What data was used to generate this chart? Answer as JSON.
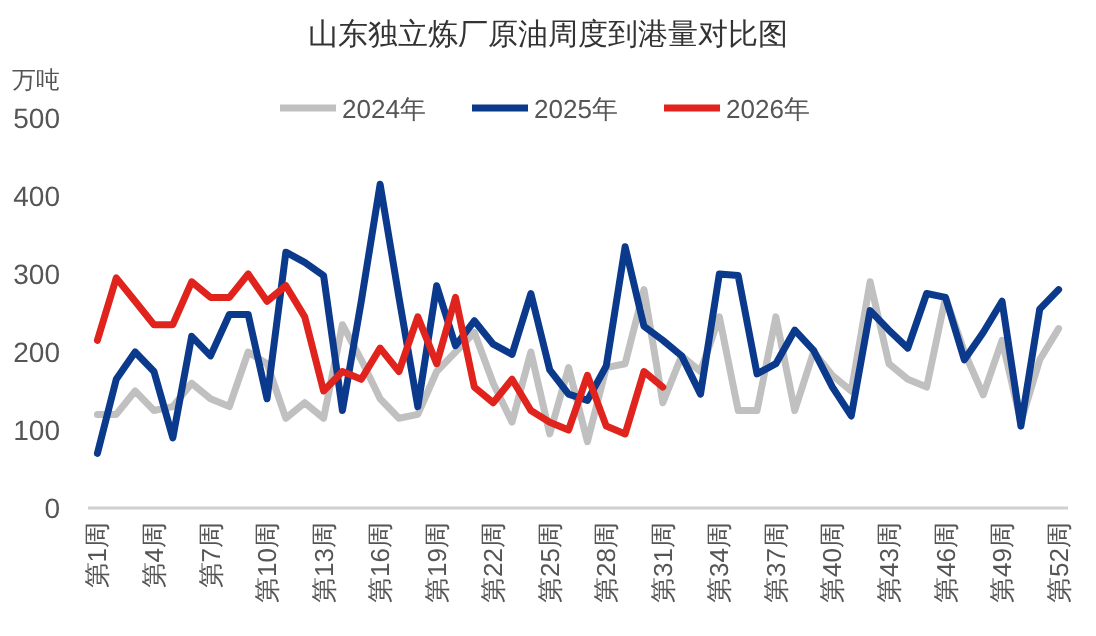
{
  "chart_data": {
    "type": "line",
    "title": "山东独立炼厂原油周度到港量对比图",
    "ylabel": "万吨",
    "categories": [
      "第1周",
      null,
      null,
      "第4周",
      null,
      null,
      "第7周",
      null,
      null,
      "第10周",
      null,
      null,
      "第13周",
      null,
      null,
      "第16周",
      null,
      null,
      "第19周",
      null,
      null,
      "第22周",
      null,
      null,
      "第25周",
      null,
      null,
      "第28周",
      null,
      null,
      "第31周",
      null,
      null,
      "第34周",
      null,
      null,
      "第37周",
      null,
      null,
      "第40周",
      null,
      null,
      "第43周",
      null,
      null,
      "第46周",
      null,
      null,
      "第49周",
      null,
      null,
      "第52周"
    ],
    "series": [
      {
        "name": "2024年",
        "color": "#c0c0c0",
        "values": [
          120,
          120,
          150,
          125,
          130,
          160,
          140,
          130,
          200,
          185,
          115,
          135,
          115,
          235,
          190,
          140,
          115,
          120,
          175,
          200,
          225,
          160,
          110,
          200,
          95,
          180,
          85,
          180,
          185,
          280,
          135,
          195,
          175,
          245,
          125,
          125,
          245,
          125,
          200,
          170,
          150,
          290,
          185,
          165,
          155,
          270,
          200,
          145,
          215,
          110,
          190,
          230
        ]
      },
      {
        "name": "2025年",
        "color": "#0b3a8c",
        "values": [
          70,
          165,
          200,
          175,
          90,
          220,
          195,
          248,
          248,
          140,
          328,
          315,
          298,
          125,
          265,
          415,
          270,
          130,
          285,
          208,
          240,
          210,
          197,
          275,
          177,
          146,
          138,
          182,
          335,
          233,
          215,
          195,
          146,
          300,
          298,
          172,
          185,
          228,
          202,
          155,
          118,
          253,
          228,
          205,
          275,
          270,
          190,
          225,
          265,
          105,
          255,
          280
        ]
      },
      {
        "name": "2026年",
        "color": "#e0231c",
        "values": [
          215,
          295,
          265,
          235,
          235,
          290,
          270,
          270,
          300,
          265,
          285,
          245,
          150,
          175,
          165,
          205,
          175,
          245,
          185,
          270,
          155,
          135,
          165,
          125,
          110,
          100,
          170,
          105,
          95,
          175,
          155,
          null,
          null,
          null,
          null,
          null,
          null,
          null,
          null,
          null,
          null,
          null,
          null,
          null,
          null,
          null,
          null,
          null,
          null,
          null,
          null,
          null
        ]
      }
    ],
    "ylim": [
      0,
      500
    ],
    "yticks": [
      0,
      100,
      200,
      300,
      400,
      500
    ],
    "grid": false,
    "legend": "top",
    "marker": "none",
    "line_style": "solid"
  }
}
